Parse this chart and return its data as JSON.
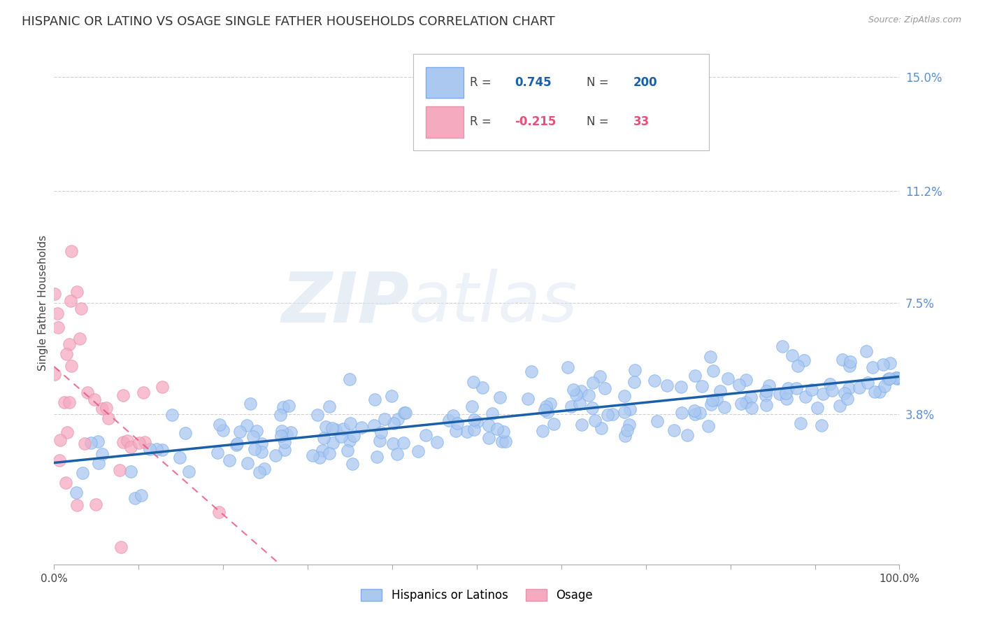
{
  "title": "HISPANIC OR LATINO VS OSAGE SINGLE FATHER HOUSEHOLDS CORRELATION CHART",
  "source": "Source: ZipAtlas.com",
  "ylabel": "Single Father Households",
  "watermark_zip": "ZIP",
  "watermark_atlas": "atlas",
  "blue_R": 0.745,
  "blue_N": 200,
  "pink_R": -0.215,
  "pink_N": 33,
  "blue_color": "#aac8f0",
  "blue_edge_color": "#7aaeee",
  "blue_line_color": "#1a5fa8",
  "pink_color": "#f5aac0",
  "pink_edge_color": "#e890b0",
  "pink_line_color": "#e8507a",
  "ytick_labels": [
    "3.8%",
    "7.5%",
    "11.2%",
    "15.0%"
  ],
  "ytick_values": [
    0.038,
    0.075,
    0.112,
    0.15
  ],
  "xlim": [
    0.0,
    1.0
  ],
  "ylim": [
    -0.012,
    0.162
  ],
  "legend_entries": [
    "Hispanics or Latinos",
    "Osage"
  ],
  "title_fontsize": 13,
  "axis_label_fontsize": 11,
  "tick_fontsize": 11,
  "right_tick_color": "#5b8fd4",
  "grid_color": "#d0d0d0",
  "background_color": "#ffffff",
  "blue_trend_start_y": 0.022,
  "blue_trend_end_y": 0.05,
  "pink_trend_start_y": 0.05,
  "pink_trend_end_y": -0.015
}
